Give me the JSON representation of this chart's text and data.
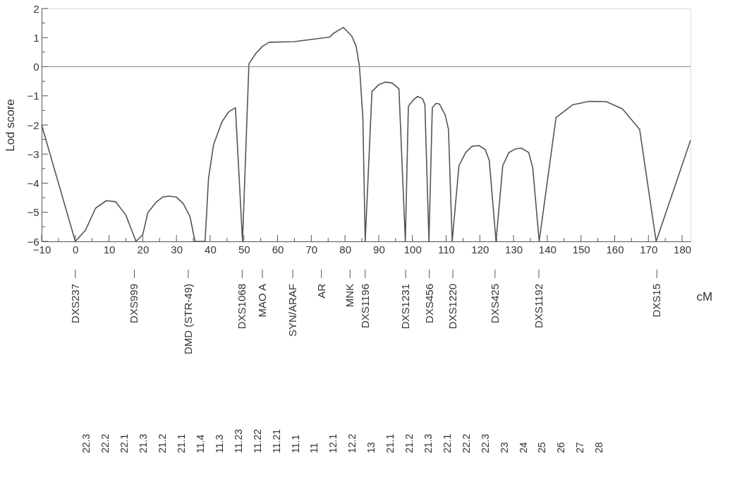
{
  "chart_data": {
    "type": "line",
    "xlabel": "cM",
    "ylabel": "Lod score",
    "x": [
      -10,
      0,
      3,
      6,
      9.2,
      12,
      15,
      18,
      20,
      21.5,
      24,
      26,
      28,
      30,
      32,
      34,
      35.5,
      38.5,
      39.5,
      41,
      43.5,
      45.5,
      47.5,
      49.6,
      51.5,
      53.5,
      55.5,
      57.5,
      65,
      75.5,
      76.5,
      79.5,
      82,
      83.3,
      84.3,
      85.3,
      86,
      88,
      90,
      92,
      94,
      96,
      97.9,
      98.8,
      100.2,
      101.5,
      103,
      103.7,
      104.9,
      105.9,
      107,
      108,
      109.7,
      110.7,
      111.8,
      113.8,
      115.8,
      117.7,
      119.7,
      121.6,
      122.8,
      124.8,
      126.8,
      128.6,
      130.6,
      132.4,
      134.5,
      135.7,
      137.6,
      142.6,
      147.5,
      152.5,
      157.5,
      162.3,
      167.4,
      172.3,
      182.5
    ],
    "series": [
      {
        "color": "#555555",
        "values": [
          -2.0,
          -6,
          -5.62,
          -4.86,
          -4.6,
          -4.64,
          -5.1,
          -6,
          -5.77,
          -5.02,
          -4.65,
          -4.47,
          -4.45,
          -4.48,
          -4.7,
          -5.14,
          -6,
          -6,
          -3.85,
          -2.68,
          -1.89,
          -1.55,
          -1.41,
          -6,
          0.1,
          0.45,
          0.7,
          0.84,
          0.86,
          1.02,
          1.14,
          1.35,
          1.05,
          0.7,
          0,
          -1.75,
          -6,
          -0.85,
          -0.62,
          -0.53,
          -0.56,
          -0.76,
          -6,
          -1.36,
          -1.15,
          -1.02,
          -1.1,
          -1.3,
          -6,
          -1.41,
          -1.26,
          -1.28,
          -1.65,
          -2.15,
          -6,
          -3.4,
          -2.95,
          -2.73,
          -2.71,
          -2.84,
          -3.22,
          -6,
          -3.4,
          -2.95,
          -2.82,
          -2.8,
          -2.95,
          -3.47,
          -6,
          -1.75,
          -1.31,
          -1.19,
          -1.2,
          -1.45,
          -2.15,
          -6,
          -2.53
        ]
      }
    ],
    "xlim": [
      -10,
      182.5
    ],
    "xticks": [
      -10,
      {
        "value": -5,
        "label": null
      },
      0,
      {
        "value": 5,
        "label": null
      },
      10,
      {
        "value": 15,
        "label": null
      },
      20,
      {
        "value": 25,
        "label": null
      },
      30,
      {
        "value": 35,
        "label": null
      },
      40,
      {
        "value": 45,
        "label": null
      },
      50,
      {
        "value": 55,
        "label": null
      },
      60,
      {
        "value": 65,
        "label": null
      },
      70,
      {
        "value": 75,
        "label": null
      },
      80,
      {
        "value": 85,
        "label": null
      },
      90,
      {
        "value": 95,
        "label": null
      },
      100,
      {
        "value": 105,
        "label": null
      },
      110,
      {
        "value": 115,
        "label": null
      },
      120,
      {
        "value": 125,
        "label": null
      },
      130,
      {
        "value": 135,
        "label": null
      },
      140,
      {
        "value": 145,
        "label": null
      },
      150,
      {
        "value": 155,
        "label": null
      },
      160,
      {
        "value": 165,
        "label": null
      },
      170,
      {
        "value": 175,
        "label": null
      },
      180
    ],
    "ylim": [
      -6,
      2
    ],
    "yticks": [
      -6,
      {
        "value": -5.5,
        "label": null
      },
      -5,
      {
        "value": -4.5,
        "label": null
      },
      -4,
      {
        "value": -3.5,
        "label": null
      },
      -3,
      {
        "value": -2.5,
        "label": null
      },
      -2,
      {
        "value": -1.5,
        "label": null
      },
      -1,
      {
        "value": -0.5,
        "label": null
      },
      0,
      {
        "value": 0.5,
        "label": null
      },
      1,
      {
        "value": 1.5,
        "label": null
      },
      2
    ],
    "ref_lines": [
      {
        "axis": "y",
        "value": 0,
        "color": "#888888"
      }
    ],
    "grid": false,
    "legend": false,
    "annotations": [
      {
        "text": "DXS237",
        "x": 0
      },
      {
        "text": "DXS999",
        "x": 17.5
      },
      "DMD (STR-49)",
      {
        "text": "DXS1068",
        "x": 49.5
      },
      {
        "text": "MAO A",
        "x": 55.5
      },
      {
        "text": "SYN/ARAF",
        "x": 64.5
      },
      "AR",
      {
        "text": "MNK",
        "x": 81.5
      },
      {
        "text": "DXS1196",
        "x": 86
      },
      {
        "text": "DXS1231",
        "x": 98
      },
      {
        "text": "DXS456",
        "x": 105
      },
      {
        "text": "DXS1220",
        "x": 112
      },
      {
        "text": "DXS425",
        "x": 124.5
      },
      {
        "text": "DXS1192",
        "x": 137.5
      },
      {
        "text": "DXS15",
        "x": 172.5
      },
      "22.3",
      "22.2",
      "22.1",
      "21.3",
      "21.2",
      "21.1",
      "11.4",
      "11.3",
      "11.23",
      "11.22",
      "11.21",
      "11.1",
      "11",
      "12.1",
      "12.2",
      "13",
      "21.1",
      "21.2",
      "21.3",
      "22.1",
      "22.2",
      "22.3",
      "23",
      "24",
      "25",
      "26",
      "27",
      "28"
    ]
  }
}
